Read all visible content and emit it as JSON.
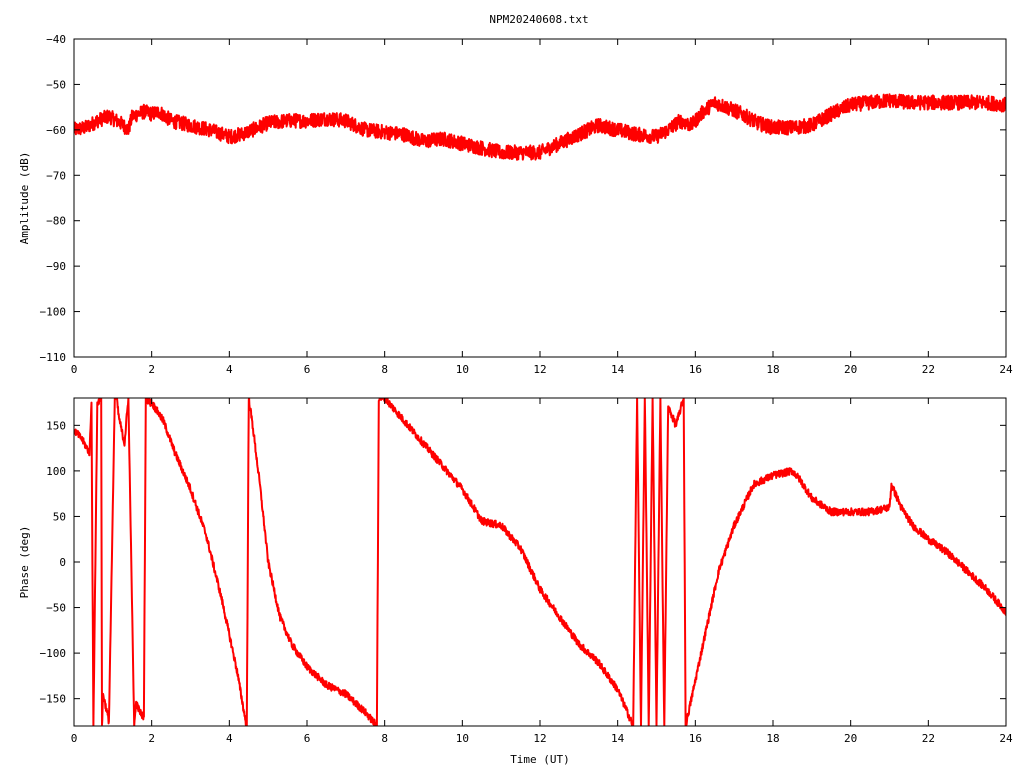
{
  "title": "NPM20240608.txt",
  "chart_data": [
    {
      "type": "line",
      "ylabel": "Amplitude (dB)",
      "xlabel": "",
      "xlim": [
        0,
        24
      ],
      "ylim": [
        -110,
        -40
      ],
      "xticks": [
        0,
        2,
        4,
        6,
        8,
        10,
        12,
        14,
        16,
        18,
        20,
        22,
        24
      ],
      "yticks": [
        -110,
        -100,
        -90,
        -80,
        -70,
        -60,
        -50,
        -40
      ],
      "ytick_labels": [
        "−110",
        "−100",
        "−90",
        "−80",
        "−70",
        "−60",
        "−50",
        "−40"
      ],
      "grid": false,
      "series": [
        {
          "color": "#ff0000",
          "noise": 1.6,
          "x": [
            0,
            0.3,
            0.6,
            0.9,
            1.2,
            1.4,
            1.5,
            1.8,
            2.0,
            2.2,
            2.5,
            3.0,
            3.5,
            4.0,
            4.3,
            4.6,
            5.0,
            5.5,
            6.0,
            6.5,
            7.0,
            7.5,
            8.0,
            8.5,
            9.0,
            9.5,
            10.0,
            10.5,
            11.0,
            11.5,
            12.0,
            12.5,
            13.0,
            13.5,
            14.0,
            14.5,
            15.0,
            15.3,
            15.6,
            15.9,
            16.2,
            16.5,
            16.8,
            17.2,
            17.6,
            18.0,
            18.5,
            19.0,
            19.5,
            20.0,
            20.5,
            21.0,
            21.5,
            22.0,
            22.5,
            23.0,
            23.5,
            24.0
          ],
          "values": [
            -60,
            -59.5,
            -58,
            -57,
            -58.5,
            -60,
            -57,
            -56,
            -56.5,
            -56,
            -58,
            -59,
            -60,
            -61.5,
            -61,
            -60,
            -58.5,
            -58,
            -58,
            -57.5,
            -58,
            -60,
            -60.5,
            -61,
            -62.5,
            -62,
            -63,
            -64,
            -65,
            -65,
            -65,
            -63,
            -61,
            -59,
            -60,
            -61,
            -61.5,
            -60,
            -58,
            -59,
            -56,
            -54,
            -55,
            -56.5,
            -58.5,
            -59.5,
            -59.5,
            -59,
            -56.5,
            -54.5,
            -54,
            -53.5,
            -54,
            -54,
            -54,
            -54,
            -54,
            -54.5
          ]
        }
      ]
    },
    {
      "type": "line",
      "ylabel": "Phase (deg)",
      "xlabel": "Time (UT)",
      "xlim": [
        0,
        24
      ],
      "ylim": [
        -180,
        180
      ],
      "xticks": [
        0,
        2,
        4,
        6,
        8,
        10,
        12,
        14,
        16,
        18,
        20,
        22,
        24
      ],
      "yticks": [
        -150,
        -100,
        -50,
        0,
        50,
        100,
        150
      ],
      "ytick_labels": [
        "−150",
        "−100",
        "−50",
        "0",
        "50",
        "100",
        "150"
      ],
      "grid": false,
      "series": [
        {
          "color": "#ff0000",
          "noise": 4,
          "x": [
            0,
            0.2,
            0.4,
            0.45,
            0.5,
            0.6,
            0.7,
            0.72,
            0.75,
            0.9,
            1.05,
            1.1,
            1.15,
            1.3,
            1.4,
            1.55,
            1.6,
            1.7,
            1.8,
            1.85,
            1.95,
            2.0,
            2.3,
            2.6,
            3.0,
            3.4,
            3.8,
            4.2,
            4.4,
            4.45,
            4.5,
            4.6,
            4.8,
            5.0,
            5.3,
            5.6,
            6.0,
            6.5,
            7.0,
            7.5,
            7.8,
            7.85,
            8.0,
            8.1,
            8.5,
            9.0,
            9.5,
            10.0,
            10.5,
            11.0,
            11.5,
            12.0,
            12.5,
            13.0,
            13.5,
            14.0,
            14.3,
            14.4,
            14.5,
            14.6,
            14.7,
            14.8,
            14.9,
            15.0,
            15.1,
            15.2,
            15.3,
            15.5,
            15.7,
            15.75,
            15.8,
            16.0,
            16.3,
            16.6,
            17.0,
            17.5,
            18.0,
            18.5,
            18.7,
            19.0,
            19.5,
            20.0,
            20.5,
            21.0,
            21.05,
            21.3,
            21.6,
            22.0,
            22.5,
            23.0,
            23.5,
            24.0
          ],
          "values": [
            145,
            135,
            120,
            175,
            -180,
            175,
            180,
            -180,
            -145,
            -175,
            180,
            180,
            160,
            130,
            180,
            -180,
            -155,
            -165,
            -170,
            180,
            175,
            175,
            155,
            120,
            80,
            30,
            -40,
            -120,
            -170,
            -180,
            180,
            150,
            80,
            0,
            -60,
            -90,
            -115,
            -135,
            -145,
            -165,
            -180,
            180,
            180,
            175,
            155,
            130,
            105,
            80,
            45,
            40,
            15,
            -30,
            -60,
            -90,
            -110,
            -140,
            -170,
            -180,
            180,
            -180,
            180,
            -180,
            180,
            -180,
            180,
            -180,
            170,
            150,
            180,
            -180,
            -170,
            -130,
            -70,
            -10,
            40,
            85,
            95,
            100,
            90,
            70,
            55,
            55,
            55,
            60,
            85,
            60,
            40,
            25,
            10,
            -10,
            -30,
            -55
          ]
        }
      ]
    }
  ]
}
